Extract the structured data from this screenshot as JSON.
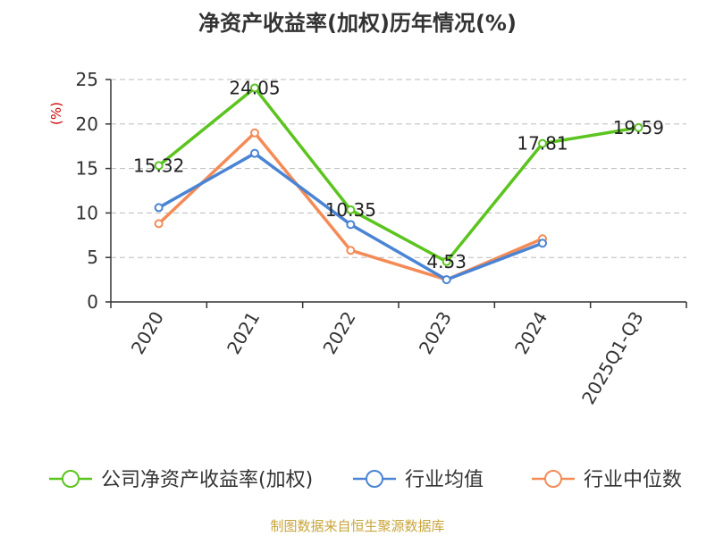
{
  "chart_data": {
    "type": "line",
    "title": "净资产收益率(加权)历年情况(%)",
    "ylabel": "(%)",
    "xlabel": "",
    "categories": [
      "2020",
      "2021",
      "2022",
      "2023",
      "2024",
      "2025Q1-Q3"
    ],
    "ylim": [
      0,
      25
    ],
    "yticks": [
      0,
      5,
      10,
      15,
      20,
      25
    ],
    "grid": true,
    "series": [
      {
        "name": "公司净资产收益率(加权)",
        "color": "#5bc41e",
        "values": [
          15.32,
          24.05,
          10.35,
          4.53,
          17.81,
          19.59
        ],
        "labels": true
      },
      {
        "name": "行业均值",
        "color": "#4a84d4",
        "values": [
          10.6,
          16.7,
          8.7,
          2.5,
          6.6,
          null
        ],
        "labels": false
      },
      {
        "name": "行业中位数",
        "color": "#f48b57",
        "values": [
          8.8,
          19.0,
          5.8,
          2.5,
          7.1,
          null
        ],
        "labels": false
      }
    ],
    "legend_position": "bottom",
    "source": "制图数据来自恒生聚源数据库"
  }
}
